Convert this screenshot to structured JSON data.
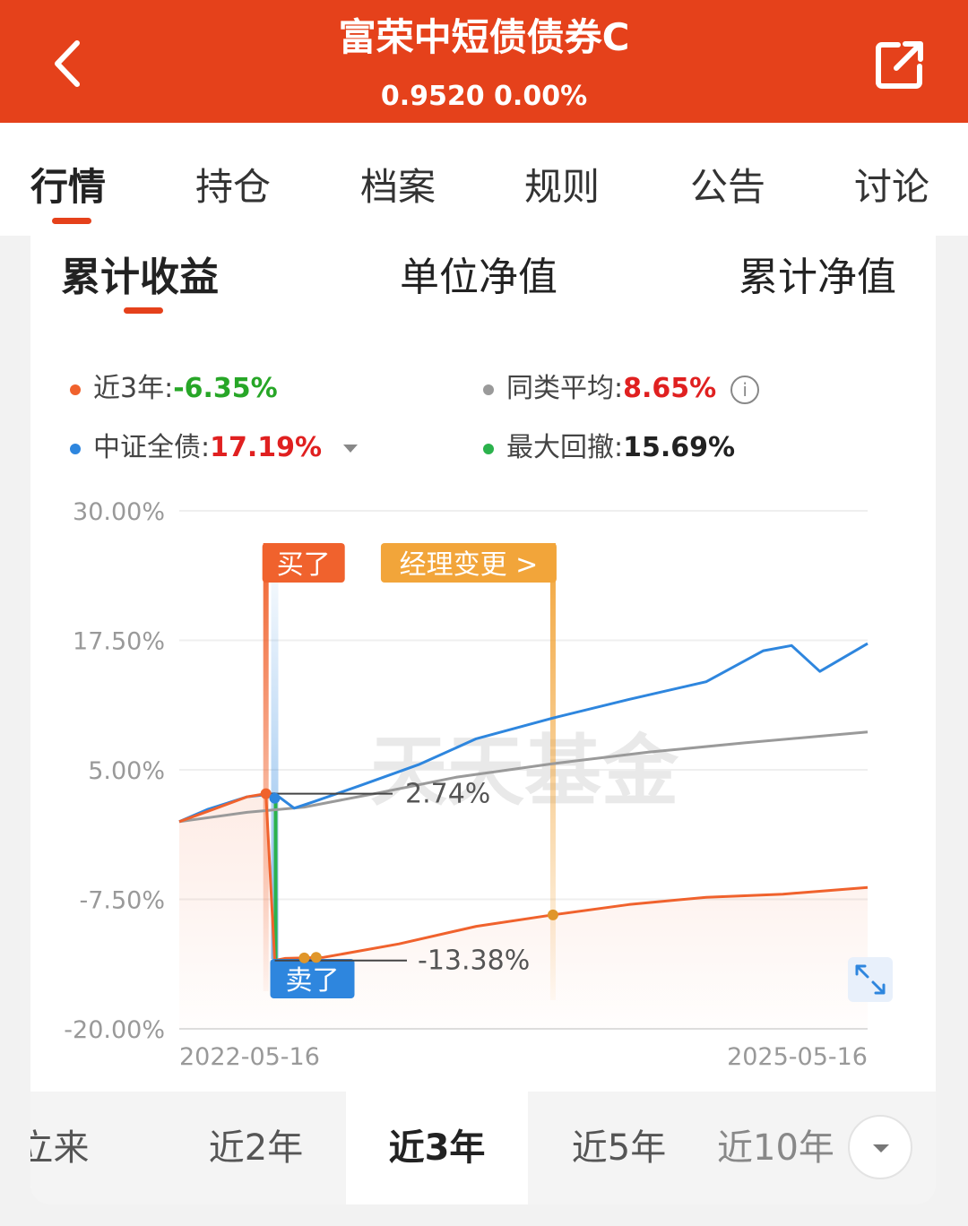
{
  "header": {
    "title": "富荣中短债债券C",
    "subtitle": "0.9520 0.00%",
    "back_icon": "chevron-left-icon",
    "share_icon": "share-icon",
    "bg_color": "#e5411b"
  },
  "tabs": [
    "行情",
    "持仓",
    "档案",
    "规则",
    "公告",
    "讨论"
  ],
  "sub_tabs": [
    "累计收益",
    "单位净值",
    "累计净值"
  ],
  "legend": {
    "fund": {
      "label": "近3年:",
      "value": "-6.35%",
      "color": "#f0622d",
      "value_color": "#27a627"
    },
    "peer": {
      "label": "同类平均:",
      "value": "8.65%",
      "color": "#9a9a9a",
      "value_color": "#e02020"
    },
    "index": {
      "label": "中证全债:",
      "value": "17.19%",
      "color": "#2e86de",
      "value_color": "#e02020"
    },
    "drawdown": {
      "label": "最大回撤:",
      "value": "15.69%",
      "color": "#2bb24c",
      "value_color": "#222222"
    }
  },
  "markers": {
    "buy": "买了",
    "sell": "卖了",
    "manager": "经理变更 >",
    "callout_top": "2.74%",
    "callout_bottom": "-13.38%",
    "watermark": "天天基金",
    "expand_icon": "expand-icon"
  },
  "periods": [
    "成立来",
    "近2年",
    "近3年",
    "近5年",
    "近10年"
  ],
  "more_icon": "chevron-down-icon",
  "chart_data": {
    "type": "line",
    "x_start": "2022-05-16",
    "x_end": "2025-05-16",
    "y_ticks": [
      "30.00%",
      "17.50%",
      "5.00%",
      "-7.50%",
      "-20.00%"
    ],
    "ylim": [
      -20,
      30
    ],
    "grid": true,
    "series": [
      {
        "name": "近3年",
        "color": "#f0622d",
        "x": [
          "2022-05-16",
          "2022-07-01",
          "2022-09-01",
          "2022-10-01",
          "2022-10-15",
          "2022-11-01",
          "2023-01-01",
          "2023-05-01",
          "2023-09-01",
          "2024-01-01",
          "2024-05-01",
          "2024-09-01",
          "2025-01-01",
          "2025-05-16"
        ],
        "values": [
          0.0,
          1.0,
          2.4,
          2.7,
          -13.4,
          -13.2,
          -13.1,
          -11.8,
          -10.1,
          -9.0,
          -8.0,
          -7.3,
          -7.0,
          -6.35
        ]
      },
      {
        "name": "中证全债",
        "color": "#2e86de",
        "x": [
          "2022-05-16",
          "2022-07-01",
          "2022-09-01",
          "2022-10-15",
          "2022-11-15",
          "2022-12-15",
          "2023-03-01",
          "2023-06-01",
          "2023-09-01",
          "2024-01-01",
          "2024-05-01",
          "2024-09-01",
          "2024-12-01",
          "2025-01-15",
          "2025-03-01",
          "2025-05-16"
        ],
        "values": [
          0.0,
          1.2,
          2.4,
          2.7,
          1.3,
          1.9,
          3.5,
          5.5,
          8.0,
          10.0,
          11.8,
          13.5,
          16.5,
          17.0,
          14.5,
          17.19
        ]
      },
      {
        "name": "同类平均",
        "color": "#9a9a9a",
        "x": [
          "2022-05-16",
          "2022-09-01",
          "2022-12-01",
          "2023-04-01",
          "2023-08-01",
          "2024-01-01",
          "2024-06-01",
          "2024-11-01",
          "2025-05-16"
        ],
        "values": [
          0.0,
          0.9,
          1.4,
          2.8,
          4.3,
          5.6,
          6.7,
          7.6,
          8.65
        ]
      }
    ]
  }
}
